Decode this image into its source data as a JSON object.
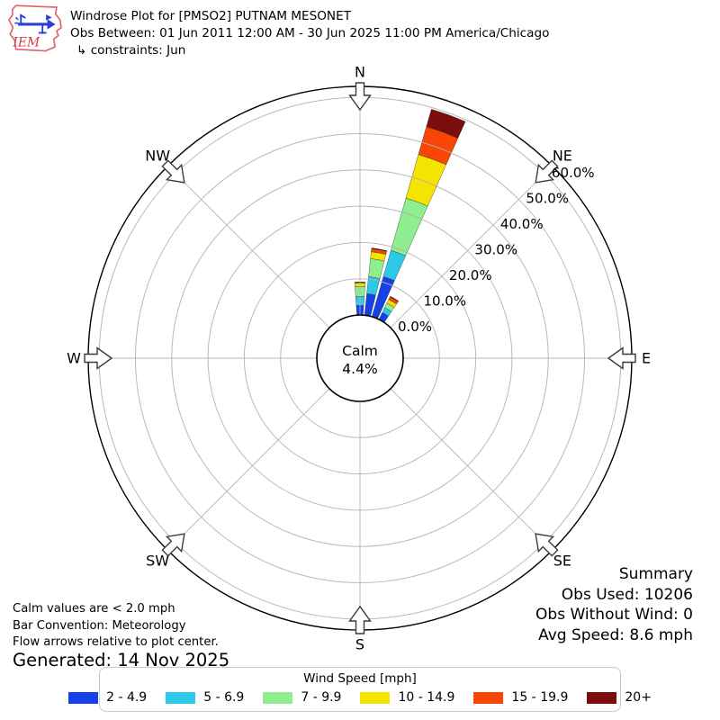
{
  "header": {
    "title": "Windrose Plot for [PMSO2] PUTNAM MESONET",
    "subtitle": "Obs Between: 01 Jun 2011 12:00 AM - 30 Jun 2025 11:00 PM America/Chicago",
    "constraints": "↳ constraints: Jun",
    "logo_text": "IEM"
  },
  "chart_data": {
    "type": "windrose",
    "units": "percent frequency",
    "sector_count": 36,
    "bar_width_deg": 8,
    "compass": [
      {
        "label": "N",
        "deg": 0
      },
      {
        "label": "NE",
        "deg": 45
      },
      {
        "label": "E",
        "deg": 90
      },
      {
        "label": "SE",
        "deg": 135
      },
      {
        "label": "S",
        "deg": 180
      },
      {
        "label": "SW",
        "deg": 225
      },
      {
        "label": "W",
        "deg": 270
      },
      {
        "label": "NW",
        "deg": 315
      }
    ],
    "ring_values": [
      0,
      10,
      20,
      30,
      40,
      50,
      60
    ],
    "ring_labels": [
      "0.0%",
      "10.0%",
      "20.0%",
      "30.0%",
      "40.0%",
      "50.0%",
      "60.0%"
    ],
    "calm": {
      "label": "Calm",
      "value": "4.4%"
    },
    "speed_bins": [
      {
        "label": "2 - 4.9",
        "color": "#1741e6"
      },
      {
        "label": "5 - 6.9",
        "color": "#2cc9e8"
      },
      {
        "label": "7 - 9.9",
        "color": "#8fee8f"
      },
      {
        "label": "10 - 14.9",
        "color": "#f5e400"
      },
      {
        "label": "15 - 19.9",
        "color": "#f84705"
      },
      {
        "label": "20+",
        "color": "#7c0d0d"
      }
    ],
    "bars": [
      {
        "direction_deg": 0,
        "segments": [
          2.65,
          2.45,
          2.75,
          1.0,
          0.2,
          0.05
        ],
        "total_pct": 9.1
      },
      {
        "direction_deg": 10,
        "segments": [
          6.0,
          4.7,
          5.0,
          1.9,
          0.85,
          0.2
        ],
        "total_pct": 18.65
      },
      {
        "direction_deg": 20,
        "segments": [
          11.5,
          7.5,
          15.0,
          12.5,
          8.0,
          5.0
        ],
        "total_pct": 59.5
      },
      {
        "direction_deg": 30,
        "segments": [
          2.1,
          1.5,
          1.4,
          1.1,
          0.8,
          0.2
        ],
        "total_pct": 7.1
      }
    ]
  },
  "legend": {
    "title": "Wind Speed [mph]"
  },
  "summary": {
    "heading": "Summary",
    "obs_used": "Obs Used: 10206",
    "obs_without_wind": "Obs Without Wind: 0",
    "avg_speed": "Avg Speed: 8.6 mph"
  },
  "footnotes": {
    "calm_note": "Calm values are < 2.0 mph",
    "bar_convention": "Bar Convention: Meteorology",
    "flow_note": "Flow arrows relative to plot center.",
    "generated": "Generated: 14 Nov 2025"
  }
}
